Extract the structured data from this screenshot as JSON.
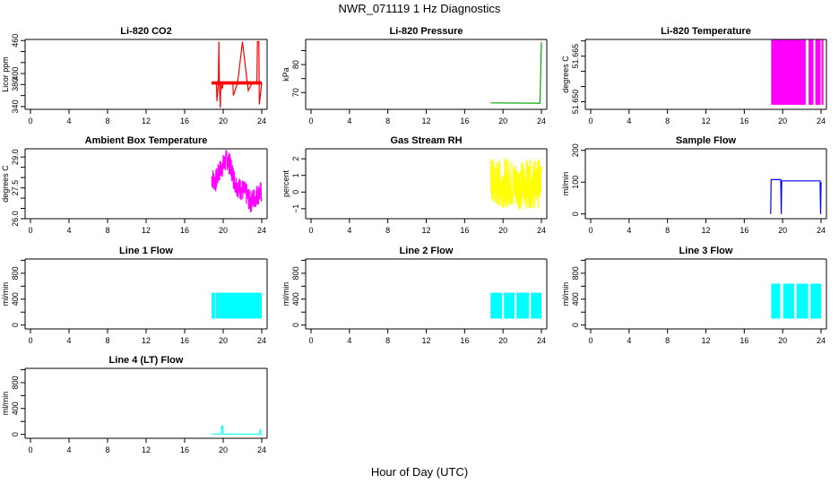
{
  "title": "NWR_071119  1 Hz Diagnostics",
  "xlabel": "Hour of Day (UTC)",
  "x_ticks": [
    0,
    4,
    8,
    12,
    16,
    20,
    24
  ],
  "chart_data": [
    {
      "type": "line",
      "title": "Li-820 CO2",
      "ylabel": "Licor ppm",
      "color": "#ff0000",
      "xlim": [
        0,
        24
      ],
      "ylim": [
        335,
        462
      ],
      "yticks": [
        340,
        360,
        380,
        400,
        420,
        440,
        460
      ],
      "ytick_labels": [
        "340",
        "",
        "380",
        "400",
        "",
        "",
        "460"
      ],
      "x": [
        18.8,
        19.3,
        19.35,
        19.5,
        19.55,
        19.6,
        19.7,
        19.75,
        19.9,
        20.0,
        20.5,
        21.0,
        21.05,
        21.5,
        22.0,
        22.5,
        22.6,
        23.0,
        23.5,
        23.55,
        23.7,
        23.75,
        24.0
      ],
      "values": [
        383,
        383,
        350,
        383,
        458,
        383,
        338,
        383,
        372,
        383,
        383,
        383,
        360,
        383,
        458,
        383,
        369,
        383,
        383,
        458,
        458,
        344,
        383
      ],
      "band": {
        "x0": 18.8,
        "x1": 24,
        "lo": 380,
        "hi": 386
      }
    },
    {
      "type": "line",
      "title": "Li-820 Pressure",
      "ylabel": "kPa",
      "color": "#00aa00",
      "xlim": [
        0,
        24
      ],
      "ylim": [
        64,
        89
      ],
      "yticks": [
        70,
        75,
        80,
        85
      ],
      "ytick_labels": [
        "70",
        "",
        "80",
        ""
      ],
      "x": [
        18.7,
        23.8,
        23.85,
        24.0
      ],
      "values": [
        66.3,
        66.2,
        66.2,
        88
      ]
    },
    {
      "type": "area",
      "title": "Li-820 Temperature",
      "ylabel": "degrees C",
      "color": "#ff00ff",
      "xlim": [
        0,
        24
      ],
      "ylim": [
        51.6475,
        51.6705
      ],
      "yticks": [
        51.65,
        51.655,
        51.66,
        51.665,
        51.67
      ],
      "ytick_labels": [
        "51.650",
        "",
        "",
        "51.665",
        ""
      ],
      "segments": [
        [
          18.8,
          22.4
        ],
        [
          22.7,
          23.2
        ],
        [
          23.4,
          23.95
        ],
        [
          24.05,
          24.25
        ]
      ],
      "band": [
        51.649,
        51.6705
      ]
    },
    {
      "type": "line",
      "title": "Ambient Box Temperature",
      "ylabel": "degrees C",
      "color": "#ff00ff",
      "xlim": [
        0,
        24
      ],
      "ylim": [
        26.0,
        29.4
      ],
      "yticks": [
        26.0,
        26.5,
        27.0,
        27.5,
        28.0,
        28.5,
        29.0
      ],
      "ytick_labels": [
        "26.0",
        "",
        "",
        "27.5",
        "",
        "",
        "29.0"
      ],
      "x": [
        18.8,
        19.2,
        19.6,
        20.0,
        20.4,
        20.8,
        21.2,
        21.6,
        22.0,
        22.4,
        22.8,
        23.2,
        23.6,
        24.0
      ],
      "values": [
        28.0,
        27.8,
        28.3,
        28.6,
        28.9,
        28.5,
        27.8,
        27.5,
        27.4,
        27.2,
        26.8,
        27.0,
        27.2,
        27.3
      ],
      "amplitude": 0.55
    },
    {
      "type": "line",
      "title": "Gas Stream RH",
      "ylabel": "percent",
      "color": "#ffff00",
      "xlim": [
        0,
        24
      ],
      "ylim": [
        -1.6,
        2.6
      ],
      "yticks": [
        -1,
        0,
        1,
        2
      ],
      "ytick_labels": [
        "−1",
        "0",
        "1",
        "2"
      ],
      "x": [
        18.7,
        19.5,
        20.5,
        21.5,
        22.5,
        23.5,
        24.0
      ],
      "values": [
        0.6,
        0.5,
        0.6,
        0.4,
        0.5,
        0.5,
        0.6
      ],
      "amplitude": 1.5
    },
    {
      "type": "line",
      "title": "Sample Flow",
      "ylabel": "ml/min",
      "color": "#0000ff",
      "xlim": [
        0,
        24
      ],
      "ylim": [
        -15,
        205
      ],
      "yticks": [
        0,
        100,
        200
      ],
      "ytick_labels": [
        "0",
        "100",
        "200"
      ],
      "x": [
        18.75,
        18.8,
        19.8,
        19.85,
        19.9,
        22.0,
        23.9,
        23.95,
        24.0
      ],
      "values": [
        0,
        108,
        108,
        0,
        104,
        104,
        104,
        0,
        100
      ]
    },
    {
      "type": "area",
      "title": "Line 1 Flow",
      "ylabel": "ml/min",
      "color": "#00ffff",
      "xlim": [
        0,
        24
      ],
      "ylim": [
        -60,
        1020
      ],
      "yticks": [
        0,
        200,
        400,
        600,
        800,
        1000
      ],
      "ytick_labels": [
        "0",
        "",
        "400",
        "",
        "800",
        ""
      ],
      "segments": [
        [
          18.8,
          19.15
        ],
        [
          19.25,
          24.0
        ]
      ],
      "band": [
        100,
        500
      ]
    },
    {
      "type": "area",
      "title": "Line 2 Flow",
      "ylabel": "ml/min",
      "color": "#00ffff",
      "xlim": [
        0,
        24
      ],
      "ylim": [
        -60,
        1020
      ],
      "yticks": [
        0,
        200,
        400,
        600,
        800,
        1000
      ],
      "ytick_labels": [
        "0",
        "",
        "400",
        "",
        "800",
        ""
      ],
      "segments": [
        [
          18.7,
          19.9
        ],
        [
          20.1,
          21.2
        ],
        [
          21.4,
          22.7
        ],
        [
          22.9,
          24.0
        ]
      ],
      "band": [
        100,
        500
      ]
    },
    {
      "type": "area",
      "title": "Line 3 Flow",
      "ylabel": "ml/min",
      "color": "#00ffff",
      "xlim": [
        0,
        24
      ],
      "ylim": [
        -60,
        1020
      ],
      "yticks": [
        0,
        200,
        400,
        600,
        800,
        1000
      ],
      "ytick_labels": [
        "0",
        "",
        "400",
        "",
        "800",
        ""
      ],
      "segments": [
        [
          18.8,
          19.75
        ],
        [
          20.05,
          21.2
        ],
        [
          21.45,
          22.65
        ],
        [
          22.9,
          24.0
        ]
      ],
      "band": [
        100,
        640
      ]
    },
    {
      "type": "line",
      "title": "Line 4 (LT) Flow",
      "ylabel": "ml/min",
      "color": "#00ffff",
      "xlim": [
        0,
        24
      ],
      "ylim": [
        -60,
        1020
      ],
      "yticks": [
        0,
        200,
        400,
        600,
        800,
        1000
      ],
      "ytick_labels": [
        "0",
        "",
        "400",
        "",
        "800",
        ""
      ],
      "x": [
        18.8,
        19.8,
        19.85,
        19.95,
        20.0,
        23.8,
        23.85,
        23.9,
        24.0
      ],
      "values": [
        5,
        5,
        130,
        130,
        5,
        5,
        80,
        5,
        5
      ]
    }
  ]
}
